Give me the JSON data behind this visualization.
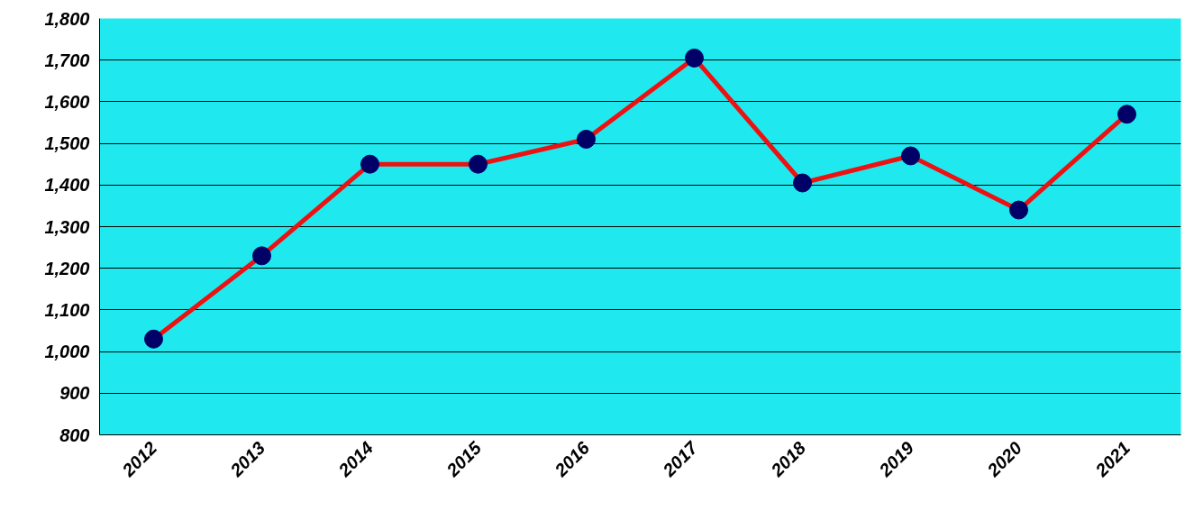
{
  "chart_data": {
    "type": "line",
    "categories": [
      "2012",
      "2013",
      "2014",
      "2015",
      "2016",
      "2017",
      "2018",
      "2019",
      "2020",
      "2021"
    ],
    "series": [
      {
        "color": "#ee1111",
        "values": [
          1030,
          1230,
          1450,
          1450,
          1510,
          1705,
          1405,
          1470,
          1340,
          1570
        ]
      }
    ],
    "ylim": [
      800,
      1800
    ],
    "yticks": [
      {
        "value": 800,
        "label": "800"
      },
      {
        "value": 900,
        "label": "900"
      },
      {
        "value": 1000,
        "label": "1,000"
      },
      {
        "value": 1100,
        "label": "1,100"
      },
      {
        "value": 1200,
        "label": "1,200"
      },
      {
        "value": 1300,
        "label": "1,300"
      },
      {
        "value": 1400,
        "label": "1,400"
      },
      {
        "value": 1500,
        "label": "1,500"
      },
      {
        "value": 1600,
        "label": "1,600"
      },
      {
        "value": 1700,
        "label": "1,700"
      },
      {
        "value": 1800,
        "label": "1,800"
      }
    ],
    "grid": "y",
    "marker": "circle",
    "line_style": "solid"
  }
}
